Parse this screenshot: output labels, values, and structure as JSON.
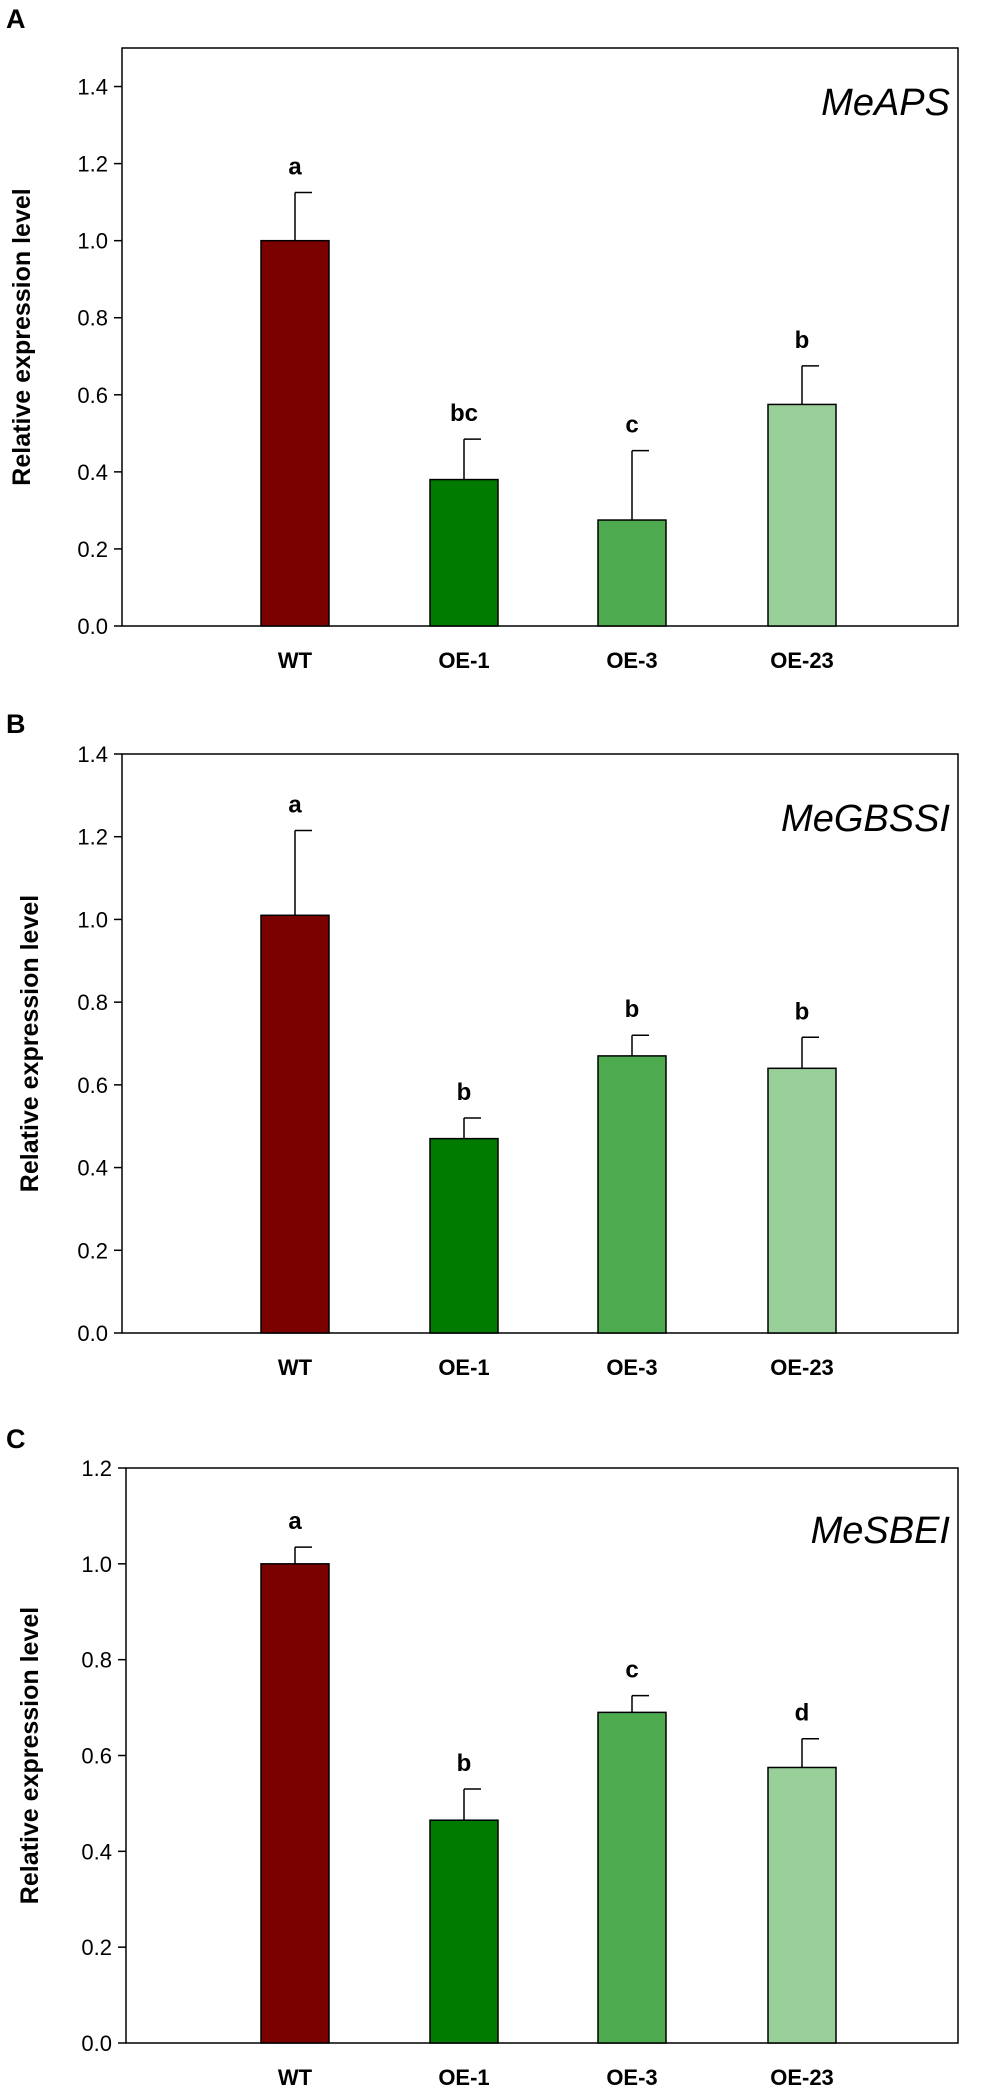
{
  "chart_data": [
    {
      "type": "bar",
      "panel": "A",
      "title": "MeAPS",
      "xlabel": "",
      "ylabel": "Relative expression level",
      "ylim": [
        0,
        1.5
      ],
      "yticks": [
        "0.0",
        "0.2",
        "0.4",
        "0.6",
        "0.8",
        "1.0",
        "1.2",
        "1.4"
      ],
      "categories": [
        "WT",
        "OE-1",
        "OE-3",
        "OE-23"
      ],
      "values": [
        1.0,
        0.38,
        0.275,
        0.575
      ],
      "errors": [
        0.125,
        0.105,
        0.18,
        0.1
      ],
      "significance": [
        "a",
        "bc",
        "c",
        "b"
      ],
      "colors": [
        "#7b0000",
        "#007b00",
        "#4eaa4e",
        "#99cf99"
      ]
    },
    {
      "type": "bar",
      "panel": "B",
      "title": "MeGBSSI",
      "xlabel": "",
      "ylabel": "Relative expression level",
      "ylim": [
        0,
        1.4
      ],
      "yticks": [
        "0.0",
        "0.2",
        "0.4",
        "0.6",
        "0.8",
        "1.0",
        "1.2",
        "1.4"
      ],
      "categories": [
        "WT",
        "OE-1",
        "OE-3",
        "OE-23"
      ],
      "values": [
        1.01,
        0.47,
        0.67,
        0.64
      ],
      "errors": [
        0.205,
        0.05,
        0.05,
        0.075
      ],
      "significance": [
        "a",
        "b",
        "b",
        "b"
      ],
      "colors": [
        "#7b0000",
        "#007b00",
        "#4eaa4e",
        "#99cf99"
      ]
    },
    {
      "type": "bar",
      "panel": "C",
      "title": "MeSBEI",
      "xlabel": "",
      "ylabel": "Relative expression level",
      "ylim": [
        0,
        1.2
      ],
      "yticks": [
        "0.0",
        "0.2",
        "0.4",
        "0.6",
        "0.8",
        "1.0",
        "1.2"
      ],
      "categories": [
        "WT",
        "OE-1",
        "OE-3",
        "OE-23"
      ],
      "values": [
        1.0,
        0.465,
        0.69,
        0.575
      ],
      "errors": [
        0.035,
        0.065,
        0.035,
        0.06
      ],
      "significance": [
        "a",
        "b",
        "c",
        "d"
      ],
      "colors": [
        "#7b0000",
        "#007b00",
        "#4eaa4e",
        "#99cf99"
      ]
    }
  ]
}
